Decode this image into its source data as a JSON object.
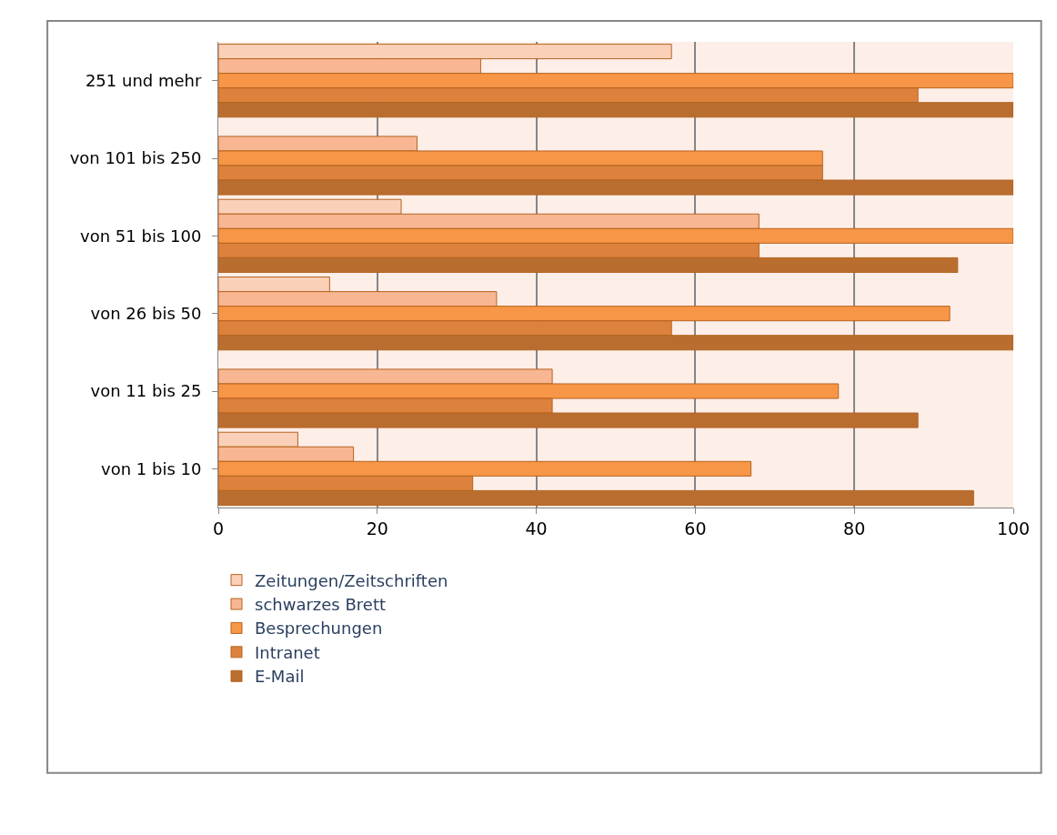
{
  "chart_data": {
    "type": "bar",
    "orientation": "horizontal",
    "categories": [
      "251 und mehr",
      "von 101 bis 250",
      "von 51 bis 100",
      "von 26 bis 50",
      "von 11 bis 25",
      "von 1 bis 10"
    ],
    "series": [
      {
        "name": "Zeitungen/Zeitschriften",
        "color": "#fbd0b8",
        "values": [
          57,
          null,
          23,
          14,
          null,
          10
        ]
      },
      {
        "name": "schwarzes Brett",
        "color": "#f9b692",
        "values": [
          33,
          25,
          68,
          35,
          42,
          17
        ]
      },
      {
        "name": "Besprechungen",
        "color": "#f79646",
        "values": [
          100,
          76,
          100,
          92,
          78,
          67
        ]
      },
      {
        "name": "Intranet",
        "color": "#dc823c",
        "values": [
          88,
          76,
          68,
          57,
          42,
          32
        ]
      },
      {
        "name": "E-Mail",
        "color": "#b96e30",
        "values": [
          100,
          100,
          93,
          100,
          88,
          95
        ]
      }
    ],
    "xlim": [
      0,
      100
    ],
    "xticks": [
      0,
      20,
      40,
      60,
      80,
      100
    ],
    "grid": "x",
    "legend": "bottom"
  }
}
